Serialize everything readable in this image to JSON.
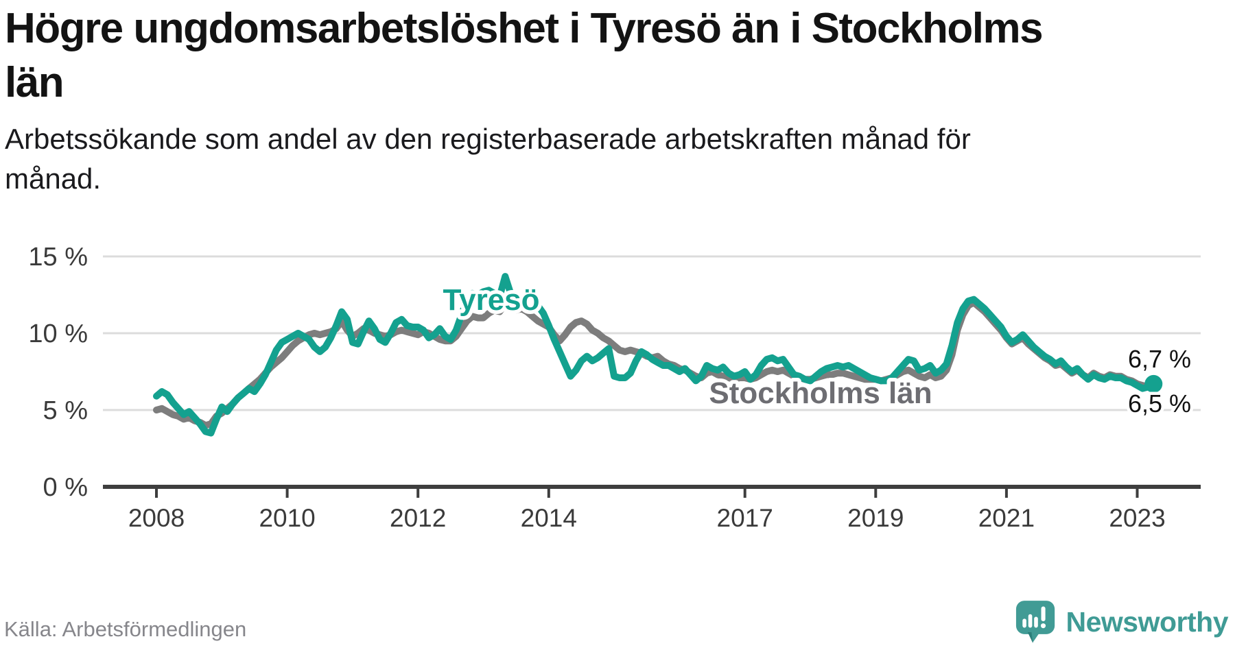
{
  "header": {
    "title_lines": [
      "Högre ungdomsarbetslöshet i Tyresö än i Stockholms",
      "län"
    ],
    "subtitle_lines": [
      "Arbetssökande som andel av den registerbaserade arbetskraften månad för",
      "månad."
    ]
  },
  "footer": {
    "source": "Källa: Arbetsförmedlingen",
    "brand": "Newsworthy"
  },
  "colors": {
    "tyreso_line": "#14a18f",
    "stockholm_line": "#7d7d7d",
    "stockholm_label": "#6d6d72",
    "gridline": "#dcdcdc",
    "axis": "#3e3e3e",
    "logo_teal": "#419b95",
    "logo_teal_dark": "#2c7f7a"
  },
  "chart_data": {
    "type": "line",
    "unit": "%",
    "frequency": "monthly",
    "x_start_year": 2008,
    "x_end": "2023-04",
    "ylim": [
      0,
      15
    ],
    "grid": "horizontal",
    "y_ticks": [
      {
        "value": 0,
        "label": "0 %"
      },
      {
        "value": 5,
        "label": "5 %"
      },
      {
        "value": 10,
        "label": "10 %"
      },
      {
        "value": 15,
        "label": "15 %"
      }
    ],
    "x_ticks": [
      {
        "year": 2008,
        "label": "2008"
      },
      {
        "year": 2010,
        "label": "2010"
      },
      {
        "year": 2012,
        "label": "2012"
      },
      {
        "year": 2014,
        "label": "2014"
      },
      {
        "year": 2017,
        "label": "2017"
      },
      {
        "year": 2019,
        "label": "2019"
      },
      {
        "year": 2021,
        "label": "2021"
      },
      {
        "year": 2023,
        "label": "2023"
      }
    ],
    "series": [
      {
        "name": "Tyresö",
        "color": "#14a18f",
        "end_label": "6,7 %",
        "end_value": 6.7,
        "values": [
          5.9,
          6.2,
          6.0,
          5.5,
          5.1,
          4.7,
          4.9,
          4.5,
          4.1,
          3.6,
          3.5,
          4.4,
          5.2,
          4.9,
          5.4,
          5.8,
          6.1,
          6.4,
          6.2,
          6.7,
          7.3,
          8.1,
          8.9,
          9.4,
          9.6,
          9.8,
          10.0,
          9.8,
          9.6,
          9.1,
          8.8,
          9.1,
          9.7,
          10.5,
          11.4,
          10.9,
          9.4,
          9.3,
          10.1,
          10.8,
          10.3,
          9.6,
          9.4,
          10.0,
          10.7,
          10.9,
          10.5,
          10.4,
          10.4,
          10.2,
          9.7,
          9.9,
          10.3,
          9.8,
          9.6,
          10.2,
          11.2,
          12.2,
          12.6,
          12.5,
          12.7,
          12.8,
          12.6,
          12.4,
          13.7,
          12.6,
          12.1,
          12.3,
          12.2,
          12.0,
          11.8,
          11.3,
          10.5,
          9.6,
          8.8,
          8.0,
          7.2,
          7.6,
          8.2,
          8.5,
          8.2,
          8.4,
          8.7,
          9.0,
          7.2,
          7.1,
          7.1,
          7.4,
          8.2,
          8.8,
          8.6,
          8.3,
          8.1,
          7.9,
          7.9,
          7.7,
          7.5,
          7.7,
          7.3,
          6.9,
          7.2,
          7.9,
          7.7,
          7.6,
          7.8,
          7.4,
          7.2,
          7.3,
          7.5,
          7.0,
          7.3,
          7.9,
          8.3,
          8.4,
          8.2,
          8.3,
          7.8,
          7.3,
          7.2,
          7.0,
          6.9,
          7.2,
          7.5,
          7.7,
          7.8,
          7.9,
          7.8,
          7.9,
          7.7,
          7.5,
          7.3,
          7.1,
          7.0,
          6.9,
          6.9,
          7.1,
          7.5,
          7.9,
          8.3,
          8.2,
          7.6,
          7.7,
          7.9,
          7.4,
          7.6,
          8.0,
          9.2,
          10.7,
          11.6,
          12.1,
          12.2,
          11.9,
          11.6,
          11.2,
          10.8,
          10.4,
          9.8,
          9.4,
          9.6,
          9.9,
          9.5,
          9.1,
          8.8,
          8.5,
          8.3,
          8.0,
          8.2,
          7.8,
          7.5,
          7.7,
          7.3,
          7.0,
          7.3,
          7.1,
          7.0,
          7.2,
          7.1,
          7.1,
          6.9,
          6.8,
          6.6,
          6.4,
          6.5,
          6.7
        ]
      },
      {
        "name": "Stockholms län",
        "color": "#7d7d7d",
        "end_label": "6,5 %",
        "end_value": 6.5,
        "values": [
          5.0,
          5.1,
          4.9,
          4.7,
          4.6,
          4.4,
          4.5,
          4.3,
          4.2,
          4.0,
          4.1,
          4.6,
          4.8,
          5.1,
          5.4,
          5.8,
          6.1,
          6.4,
          6.7,
          7.0,
          7.4,
          7.8,
          8.1,
          8.4,
          8.8,
          9.2,
          9.5,
          9.7,
          9.9,
          10.0,
          9.9,
          10.0,
          10.1,
          10.3,
          10.8,
          10.2,
          9.8,
          10.0,
          10.3,
          10.2,
          10.0,
          9.9,
          9.8,
          9.9,
          10.1,
          10.2,
          10.1,
          10.0,
          9.9,
          10.1,
          10.0,
          9.8,
          9.6,
          9.5,
          9.5,
          9.8,
          10.3,
          10.8,
          11.1,
          11.0,
          11.0,
          11.3,
          11.5,
          11.4,
          11.9,
          11.6,
          11.5,
          11.6,
          11.4,
          11.1,
          10.8,
          10.6,
          10.4,
          9.9,
          9.5,
          9.9,
          10.4,
          10.7,
          10.8,
          10.6,
          10.2,
          10.0,
          9.7,
          9.5,
          9.2,
          8.9,
          8.8,
          8.9,
          8.8,
          8.7,
          8.5,
          8.4,
          8.5,
          8.2,
          8.0,
          7.9,
          7.7,
          7.6,
          7.4,
          7.2,
          7.1,
          7.4,
          7.5,
          7.3,
          7.2,
          7.1,
          7.0,
          7.1,
          7.1,
          7.0,
          7.1,
          7.3,
          7.5,
          7.6,
          7.5,
          7.6,
          7.4,
          7.2,
          7.1,
          7.0,
          7.0,
          7.1,
          7.2,
          7.3,
          7.3,
          7.4,
          7.4,
          7.3,
          7.2,
          7.1,
          7.0,
          7.0,
          7.0,
          6.9,
          7.0,
          7.1,
          7.3,
          7.5,
          7.6,
          7.4,
          7.2,
          7.1,
          7.3,
          7.1,
          7.2,
          7.6,
          8.6,
          10.2,
          11.2,
          11.8,
          12.0,
          11.7,
          11.4,
          11.0,
          10.6,
          10.2,
          9.7,
          9.3,
          9.5,
          9.7,
          9.3,
          9.0,
          8.7,
          8.4,
          8.2,
          7.9,
          8.0,
          7.7,
          7.4,
          7.6,
          7.3,
          7.1,
          7.4,
          7.2,
          7.1,
          7.3,
          7.2,
          7.2,
          7.0,
          6.9,
          6.7,
          6.6,
          6.5,
          6.5
        ]
      }
    ]
  }
}
